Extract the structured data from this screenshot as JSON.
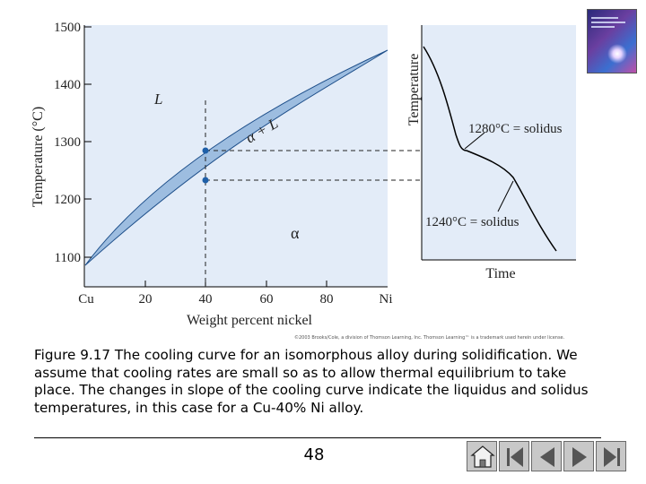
{
  "figure": {
    "y_axis_label": "Temperature (°C)",
    "y_ticks": [
      "1500",
      "1400",
      "1300",
      "1200",
      "1100"
    ],
    "x_axis_label": "Weight percent nickel",
    "x_ticks": [
      "Cu",
      "20",
      "40",
      "60",
      "80",
      "Ni"
    ],
    "region_liquid": "L",
    "region_two_phase": "α + L",
    "region_alpha": "α",
    "cooling_curve": {
      "y_axis_label": "Temperature",
      "x_axis_label": "Time",
      "liquidus_annotation": "1280°C = solidus",
      "solidus_annotation": "1240°C = solidus"
    },
    "colors": {
      "two_phase_fill": "#9dbde0",
      "plot_background": "#e3ecf8",
      "marker": "#1e5fa8"
    }
  },
  "credit": "©2003 Brooks/Cole, a division of Thomson Learning, Inc. Thomson Learning™ is a trademark used herein under license.",
  "caption": "Figure 9.17 The cooling curve for an isomorphous alloy during solidification. We assume that cooling rates are small so as to allow thermal equilibrium to take place. The changes in slope of the cooling curve indicate the liquidus and solidus temperatures, in this case for a Cu-40% Ni alloy.",
  "page_number": "48",
  "nav": {
    "home_icon": "home-icon",
    "first_icon": "first-slide-icon",
    "prev_icon": "previous-slide-icon",
    "next_icon": "next-slide-icon",
    "last_icon": "last-slide-icon"
  }
}
